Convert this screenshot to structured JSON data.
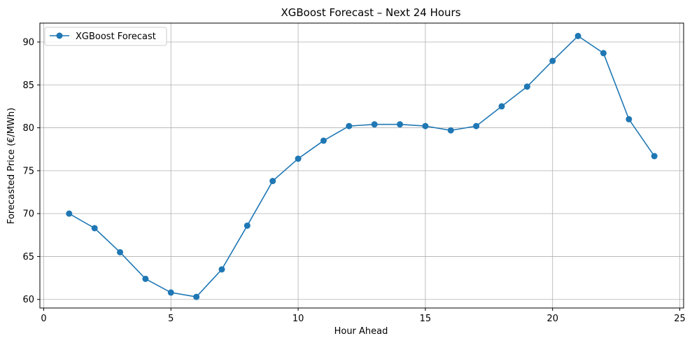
{
  "chart_data": {
    "type": "line",
    "title": "XGBoost Forecast – Next 24 Hours",
    "xlabel": "Hour Ahead",
    "ylabel": "Forecasted Price (€/MWh)",
    "xlim": [
      -0.15,
      25.15
    ],
    "ylim": [
      59.0,
      92.2
    ],
    "xticks": [
      0,
      5,
      10,
      15,
      20,
      25
    ],
    "yticks": [
      60,
      65,
      70,
      75,
      80,
      85,
      90
    ],
    "grid": true,
    "legend_position": "top-left",
    "series": [
      {
        "name": "XGBoost Forecast",
        "color": "#1f77b4",
        "marker": "circle",
        "x": [
          1,
          2,
          3,
          4,
          5,
          6,
          7,
          8,
          9,
          10,
          11,
          12,
          13,
          14,
          15,
          16,
          17,
          18,
          19,
          20,
          21,
          22,
          23,
          24
        ],
        "y": [
          70.0,
          68.3,
          65.5,
          62.4,
          60.8,
          60.3,
          63.5,
          68.6,
          73.8,
          76.4,
          78.5,
          80.2,
          80.4,
          80.4,
          80.2,
          79.7,
          80.2,
          82.5,
          84.8,
          87.8,
          90.7,
          88.7,
          81.0,
          76.7
        ]
      }
    ]
  }
}
